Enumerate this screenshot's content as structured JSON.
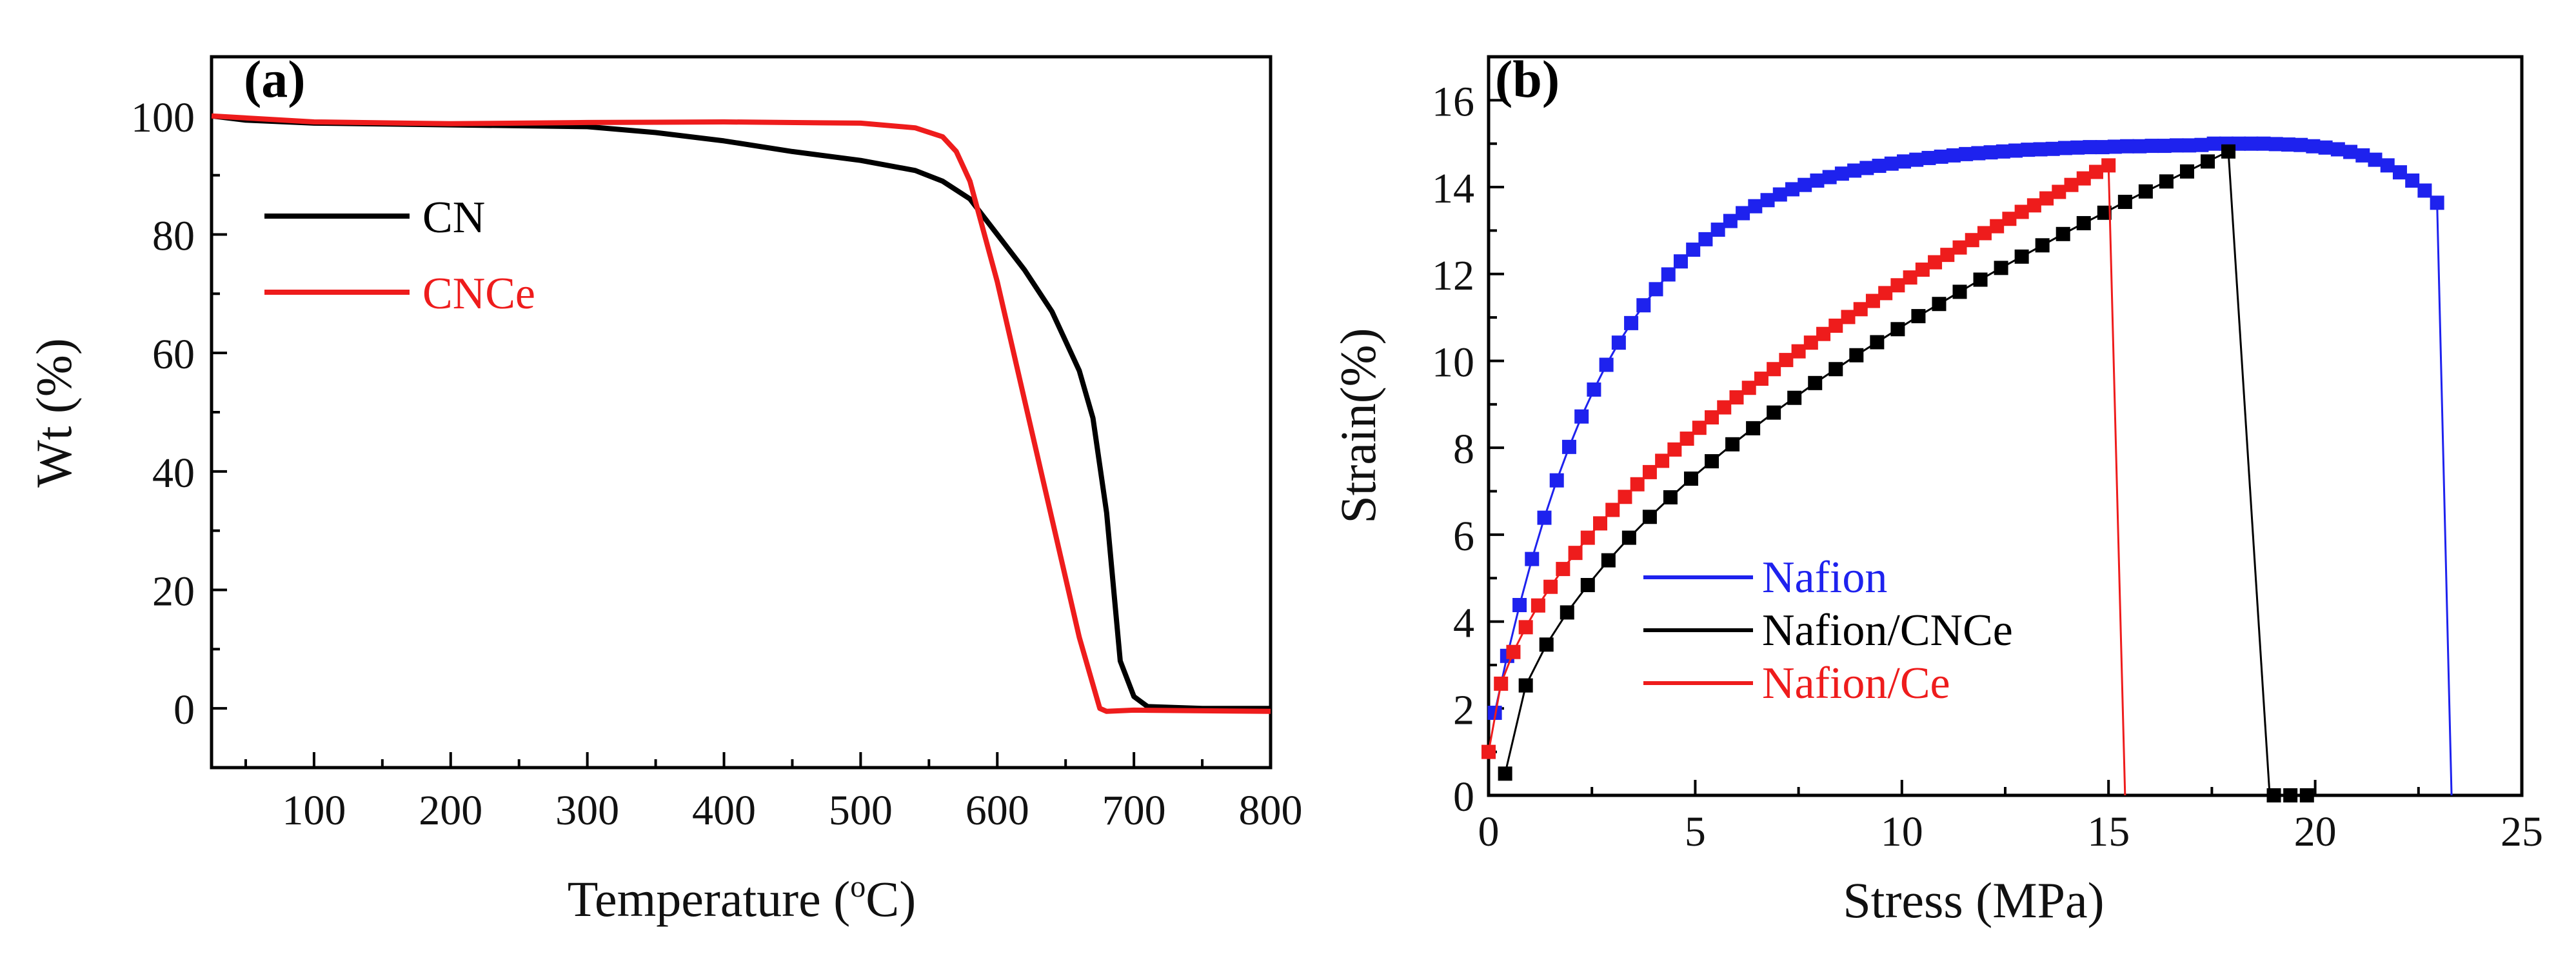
{
  "chart_data": [
    {
      "panel": "(a)",
      "type": "line",
      "xlabel": "Temperature (°C)",
      "xlabel_parts": {
        "pre": "Temperature (",
        "sup": "o",
        "post": "C)"
      },
      "ylabel": "Wt (%)",
      "xlim": [
        25,
        800
      ],
      "ylim": [
        -10,
        110
      ],
      "xticks": [
        100,
        200,
        300,
        400,
        500,
        600,
        700,
        800
      ],
      "yticks": [
        0,
        20,
        40,
        60,
        80,
        100
      ],
      "legend_position": "upper-left",
      "series": [
        {
          "name": "CN",
          "color": "#000000",
          "points": [
            [
              25,
              100
            ],
            [
              50,
              99.3
            ],
            [
              100,
              98.8
            ],
            [
              200,
              98.5
            ],
            [
              300,
              98.2
            ],
            [
              350,
              97.2
            ],
            [
              400,
              95.8
            ],
            [
              450,
              94
            ],
            [
              500,
              92.5
            ],
            [
              540,
              90.8
            ],
            [
              560,
              89
            ],
            [
              580,
              86
            ],
            [
              600,
              80
            ],
            [
              620,
              74
            ],
            [
              640,
              67
            ],
            [
              660,
              57
            ],
            [
              670,
              49
            ],
            [
              680,
              33
            ],
            [
              690,
              8
            ],
            [
              700,
              2
            ],
            [
              710,
              0.3
            ],
            [
              750,
              0
            ],
            [
              800,
              0
            ]
          ]
        },
        {
          "name": "CNCe",
          "color": "#ee1c1c",
          "points": [
            [
              25,
              100
            ],
            [
              100,
              99
            ],
            [
              200,
              98.7
            ],
            [
              300,
              98.9
            ],
            [
              400,
              99
            ],
            [
              500,
              98.8
            ],
            [
              540,
              98
            ],
            [
              560,
              96.5
            ],
            [
              570,
              94
            ],
            [
              580,
              89
            ],
            [
              600,
              72
            ],
            [
              620,
              52
            ],
            [
              640,
              32
            ],
            [
              660,
              12
            ],
            [
              675,
              0
            ],
            [
              680,
              -0.5
            ],
            [
              700,
              -0.3
            ],
            [
              800,
              -0.5
            ]
          ]
        }
      ]
    },
    {
      "panel": "(b)",
      "type": "scatter",
      "xlabel": "Stress (MPa)",
      "ylabel": "Strain(%)",
      "xlim": [
        0,
        25
      ],
      "ylim": [
        0,
        17
      ],
      "xticks": [
        0,
        5,
        10,
        15,
        20,
        25
      ],
      "yticks": [
        0,
        2,
        4,
        6,
        8,
        10,
        12,
        14,
        16
      ],
      "legend_position": "lower-left",
      "series": [
        {
          "name": "Nafion",
          "color": "#1e22ee",
          "curve": {
            "x_start": 0.15,
            "x_end": 23.0,
            "step": 0.3,
            "y_start": 1.9,
            "y_end": 14.3,
            "failure_x": 23.3,
            "plateau": 15.0,
            "rate": 0.35
          },
          "drop_to_zero": true,
          "points": []
        },
        {
          "name": "Nafion/CNCe",
          "color": "#000000",
          "curve": {
            "x_start": 0.4,
            "x_end": 18.3,
            "step": 0.5,
            "y_start": 0.5,
            "y_end": 15.0,
            "failure_x": 18.9,
            "zero_points": [
              19.0,
              19.4,
              19.8
            ]
          },
          "drop_to_zero": true,
          "points": []
        },
        {
          "name": "Nafion/Ce",
          "color": "#ee1c1c",
          "curve": {
            "x_start": 0.0,
            "x_end": 15.0,
            "step": 0.3,
            "y_start": 1.0,
            "y_end": 14.5,
            "failure_x": 15.4
          },
          "drop_to_zero": true,
          "points": []
        }
      ]
    }
  ]
}
